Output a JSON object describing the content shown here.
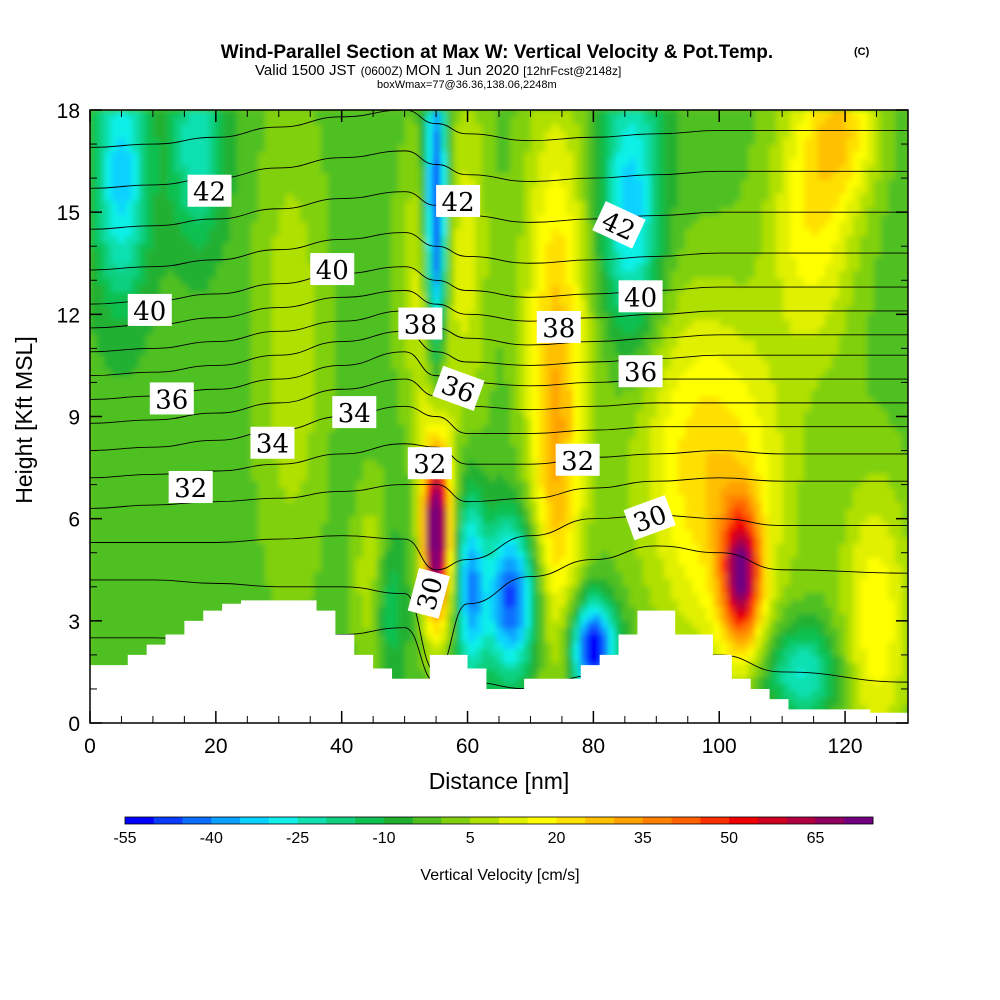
{
  "title": "Wind-Parallel Section at Max W: Vertical Velocity & Pot.Temp.",
  "copyright_mark": "(C)",
  "subtitle": {
    "valid_prefix": "Valid 1500 JST",
    "utc": "(0600Z)",
    "date": "MON 1 Jun 2020",
    "forecast": "[12hrFcst@2148z]",
    "boxmax": "boxWmax=77@36.36,138.06,2248m"
  },
  "chart_data": {
    "type": "heatmap",
    "xlabel": "Distance [nm]",
    "ylabel": "Height [Kft MSL]",
    "xlim": [
      0,
      130
    ],
    "ylim": [
      0,
      18
    ],
    "x_ticks": [
      0,
      20,
      40,
      60,
      80,
      100,
      120
    ],
    "y_ticks": [
      0,
      3,
      6,
      9,
      12,
      15,
      18
    ],
    "colorbar": {
      "title": "Vertical Velocity [cm/s]",
      "levels": [
        -55,
        -50,
        -45,
        -40,
        -35,
        -30,
        -25,
        -20,
        -15,
        -10,
        -5,
        0,
        5,
        10,
        15,
        20,
        25,
        30,
        35,
        40,
        45,
        50,
        55,
        60,
        65,
        70,
        75
      ],
      "tick_labels": [
        -55,
        -40,
        -25,
        -10,
        5,
        20,
        35,
        50,
        65
      ],
      "colors": [
        "#0000ff",
        "#0a3cff",
        "#0a6eff",
        "#0aa0ff",
        "#0ad2ff",
        "#10f0e8",
        "#10e0b0",
        "#10d080",
        "#10c050",
        "#20b030",
        "#50c020",
        "#80d010",
        "#b0e000",
        "#e0f000",
        "#ffff00",
        "#ffe000",
        "#ffc000",
        "#ffa000",
        "#ff8000",
        "#ff6000",
        "#ff3000",
        "#f00000",
        "#d00020",
        "#b00040",
        "#900060",
        "#700080"
      ]
    },
    "w_cores_cm_s": [
      {
        "x": 55,
        "z": 5.5,
        "w": 77
      },
      {
        "x": 55,
        "z": 16.5,
        "w": -55
      },
      {
        "x": 103.5,
        "z": 4.3,
        "w": 55
      },
      {
        "x": 74,
        "z": 6.8,
        "w": 30
      },
      {
        "x": 80,
        "z": 2.2,
        "w": -50
      },
      {
        "x": 67,
        "z": 3.7,
        "w": -40
      },
      {
        "x": 86,
        "z": 14.5,
        "w": -30
      }
    ],
    "isentropes": [
      {
        "theta": 29,
        "z": [
          2.5,
          2.5,
          2.4,
          2.4,
          2.6,
          2.8,
          1.2,
          1.2,
          1.0,
          1.4,
          2.0,
          2.0,
          1.5,
          1.2
        ]
      },
      {
        "theta": 30,
        "z": [
          4.2,
          4.2,
          4.1,
          4.0,
          4.0,
          3.8,
          1.5,
          3.5,
          4.3,
          4.8,
          5.2,
          5.0,
          4.5,
          4.4
        ]
      },
      {
        "theta": 31,
        "z": [
          5.3,
          5.3,
          5.3,
          5.4,
          5.5,
          5.4,
          4.5,
          4.8,
          5.5,
          6.0,
          6.1,
          6.0,
          5.8,
          5.8
        ]
      },
      {
        "theta": 32,
        "z": [
          6.3,
          6.4,
          6.5,
          6.6,
          6.8,
          7.0,
          7.0,
          6.5,
          6.6,
          6.9,
          7.1,
          7.2,
          7.1,
          7.1
        ]
      },
      {
        "theta": 33,
        "z": [
          7.2,
          7.3,
          7.4,
          7.6,
          7.9,
          8.2,
          8.1,
          7.6,
          7.6,
          7.8,
          7.9,
          8.0,
          7.9,
          7.9
        ]
      },
      {
        "theta": 34,
        "z": [
          8.0,
          8.1,
          8.3,
          8.6,
          9.0,
          9.3,
          9.0,
          8.5,
          8.5,
          8.6,
          8.7,
          8.7,
          8.7,
          8.7
        ]
      },
      {
        "theta": 35,
        "z": [
          8.8,
          8.9,
          9.1,
          9.4,
          9.8,
          10.1,
          9.6,
          9.3,
          9.2,
          9.3,
          9.4,
          9.4,
          9.4,
          9.4
        ]
      },
      {
        "theta": 36,
        "z": [
          9.5,
          9.6,
          9.8,
          10.1,
          10.5,
          10.9,
          10.2,
          10.0,
          9.9,
          10.0,
          10.1,
          10.1,
          10.1,
          10.1
        ]
      },
      {
        "theta": 37,
        "z": [
          10.2,
          10.3,
          10.5,
          10.8,
          11.2,
          11.5,
          10.9,
          10.6,
          10.5,
          10.6,
          10.7,
          10.8,
          10.8,
          10.8
        ]
      },
      {
        "theta": 38,
        "z": [
          10.9,
          11.0,
          11.2,
          11.5,
          11.8,
          12.1,
          11.6,
          11.3,
          11.1,
          11.2,
          11.3,
          11.4,
          11.4,
          11.4
        ]
      },
      {
        "theta": 39,
        "z": [
          11.6,
          11.7,
          11.9,
          12.2,
          12.5,
          12.7,
          12.3,
          12.0,
          11.8,
          11.9,
          12.0,
          12.1,
          12.1,
          12.1
        ]
      },
      {
        "theta": 40,
        "z": [
          12.3,
          12.4,
          12.6,
          12.9,
          13.2,
          13.4,
          13.0,
          12.7,
          12.5,
          12.6,
          12.7,
          12.8,
          12.8,
          12.8
        ]
      },
      {
        "theta": 41,
        "z": [
          13.3,
          13.4,
          13.6,
          13.9,
          14.2,
          14.4,
          14.0,
          13.7,
          13.5,
          13.6,
          13.7,
          13.8,
          13.8,
          13.8
        ]
      },
      {
        "theta": 42,
        "z": [
          14.5,
          14.6,
          14.8,
          15.1,
          15.4,
          15.6,
          15.2,
          14.9,
          14.7,
          14.8,
          14.9,
          15.0,
          15.0,
          15.0
        ]
      },
      {
        "theta": 43,
        "z": [
          15.7,
          15.8,
          16.0,
          16.3,
          16.6,
          16.8,
          16.4,
          16.1,
          15.9,
          16.0,
          16.1,
          16.2,
          16.2,
          16.2
        ]
      },
      {
        "theta": 44,
        "z": [
          16.9,
          17.0,
          17.2,
          17.5,
          17.8,
          18.0,
          17.6,
          17.3,
          17.1,
          17.2,
          17.3,
          17.4,
          17.4,
          17.4
        ]
      }
    ],
    "isentrope_x": [
      0,
      10,
      20,
      30,
      40,
      50,
      55,
      60,
      70,
      80,
      90,
      100,
      110,
      130
    ],
    "contour_labels": [
      {
        "text": "42",
        "x": 19,
        "z": 15.6,
        "angle": 0
      },
      {
        "text": "42",
        "x": 58.5,
        "z": 15.3,
        "angle": 0
      },
      {
        "text": "42",
        "x": 84,
        "z": 14.6,
        "angle": 25
      },
      {
        "text": "40",
        "x": 9.5,
        "z": 12.1,
        "angle": 0
      },
      {
        "text": "40",
        "x": 38.5,
        "z": 13.3,
        "angle": 0
      },
      {
        "text": "40",
        "x": 87.5,
        "z": 12.5,
        "angle": 0
      },
      {
        "text": "38",
        "x": 52.5,
        "z": 11.7,
        "angle": 0
      },
      {
        "text": "38",
        "x": 74.5,
        "z": 11.6,
        "angle": 0
      },
      {
        "text": "36",
        "x": 13,
        "z": 9.5,
        "angle": 0
      },
      {
        "text": "36",
        "x": 58.5,
        "z": 9.8,
        "angle": 20
      },
      {
        "text": "36",
        "x": 87.5,
        "z": 10.3,
        "angle": 0
      },
      {
        "text": "34",
        "x": 29,
        "z": 8.2,
        "angle": 0
      },
      {
        "text": "34",
        "x": 42,
        "z": 9.1,
        "angle": 0
      },
      {
        "text": "32",
        "x": 16,
        "z": 6.9,
        "angle": 0
      },
      {
        "text": "32",
        "x": 54,
        "z": 7.6,
        "angle": 0
      },
      {
        "text": "32",
        "x": 77.5,
        "z": 7.7,
        "angle": 0
      },
      {
        "text": "30",
        "x": 89,
        "z": 6.0,
        "angle": -20
      },
      {
        "text": "30",
        "x": 54,
        "z": 3.8,
        "angle": -75
      }
    ],
    "terrain": {
      "x": [
        0,
        3,
        3,
        6,
        6,
        9,
        9,
        12,
        12,
        15,
        15,
        18,
        18,
        21,
        21,
        24,
        24,
        27,
        27,
        30,
        30,
        33,
        33,
        36,
        36,
        39,
        39,
        42,
        42,
        45,
        45,
        48,
        48,
        51,
        51,
        54,
        54,
        57,
        57,
        60,
        60,
        63,
        63,
        66,
        66,
        69,
        69,
        72,
        72,
        75,
        75,
        78,
        78,
        81,
        81,
        84,
        84,
        87,
        87,
        90,
        90,
        93,
        93,
        96,
        96,
        99,
        99,
        102,
        102,
        105,
        105,
        108,
        108,
        111,
        111,
        114,
        114,
        117,
        117,
        120,
        120,
        124,
        124,
        130
      ],
      "z": [
        1.7,
        1.7,
        1.7,
        1.7,
        2.0,
        2.0,
        2.3,
        2.3,
        2.6,
        2.6,
        3.0,
        3.0,
        3.3,
        3.3,
        3.5,
        3.5,
        3.6,
        3.6,
        3.6,
        3.6,
        3.6,
        3.6,
        3.6,
        3.6,
        3.3,
        3.3,
        2.6,
        2.6,
        2.0,
        2.0,
        1.6,
        1.6,
        1.3,
        1.3,
        1.3,
        1.3,
        2.0,
        2.0,
        2.0,
        2.0,
        1.6,
        1.6,
        1.0,
        1.0,
        1.0,
        1.0,
        1.3,
        1.3,
        1.3,
        1.3,
        1.3,
        1.3,
        1.7,
        1.7,
        2.0,
        2.0,
        2.6,
        2.6,
        3.3,
        3.3,
        3.3,
        3.3,
        2.6,
        2.6,
        2.6,
        2.6,
        2.0,
        2.0,
        1.3,
        1.3,
        1.0,
        1.0,
        0.7,
        0.7,
        0.4,
        0.4,
        0.4,
        0.4,
        0.4,
        0.4,
        0.4,
        0.4,
        0.3,
        0.3
      ]
    }
  }
}
